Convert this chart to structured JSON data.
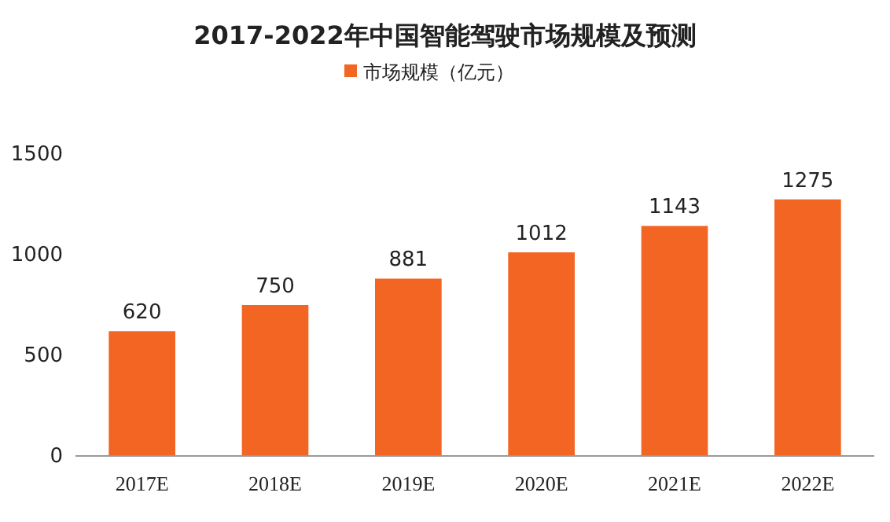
{
  "chart_data": {
    "type": "bar",
    "title": "2017-2022年中国智能驾驶市场规模及预测",
    "categories": [
      "2017E",
      "2018E",
      "2019E",
      "2020E",
      "2021E",
      "2022E"
    ],
    "series": [
      {
        "name": "市场规模（亿元）",
        "color": "#f26522",
        "values": [
          620,
          750,
          881,
          1012,
          1143,
          1275
        ]
      }
    ],
    "ylim": [
      0,
      1500
    ],
    "yticks": [
      0,
      500,
      1000,
      1500
    ],
    "data_labels": true,
    "legend": "top"
  }
}
